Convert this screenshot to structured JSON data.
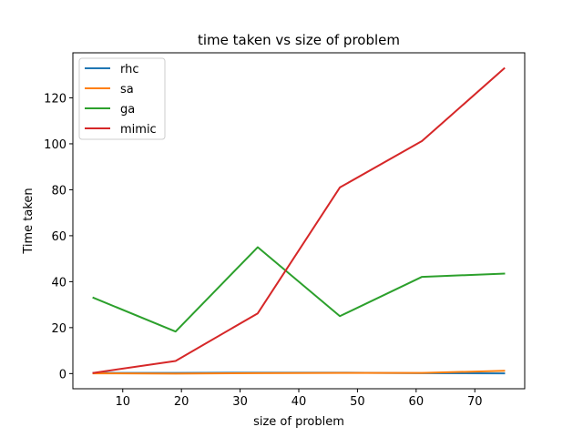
{
  "chart_data": {
    "type": "line",
    "title": "time taken vs size of problem",
    "xlabel": "size of problem",
    "ylabel": "Time taken",
    "x": [
      5,
      19,
      33,
      47,
      61,
      75
    ],
    "series": [
      {
        "name": "rhc",
        "color": "#1f77b4",
        "values": [
          0.3,
          0.3,
          0.4,
          0.4,
          0.2,
          0.1
        ]
      },
      {
        "name": "sa",
        "color": "#ff7f0e",
        "values": [
          0.1,
          0.0,
          0.2,
          0.3,
          0.3,
          1.2
        ]
      },
      {
        "name": "ga",
        "color": "#2ca02c",
        "values": [
          33.0,
          18.3,
          55.0,
          25.0,
          42.1,
          43.5
        ]
      },
      {
        "name": "mimic",
        "color": "#d62728",
        "values": [
          0.3,
          5.5,
          26.2,
          81.0,
          101.2,
          132.8
        ]
      }
    ],
    "xlim": [
      1.5,
      78.5
    ],
    "ylim": [
      -6.6,
      139.6
    ],
    "xticks": [
      10,
      20,
      30,
      40,
      50,
      60,
      70
    ],
    "yticks": [
      0,
      20,
      40,
      60,
      80,
      100,
      120
    ],
    "grid": false,
    "legend_position": "top-left"
  }
}
